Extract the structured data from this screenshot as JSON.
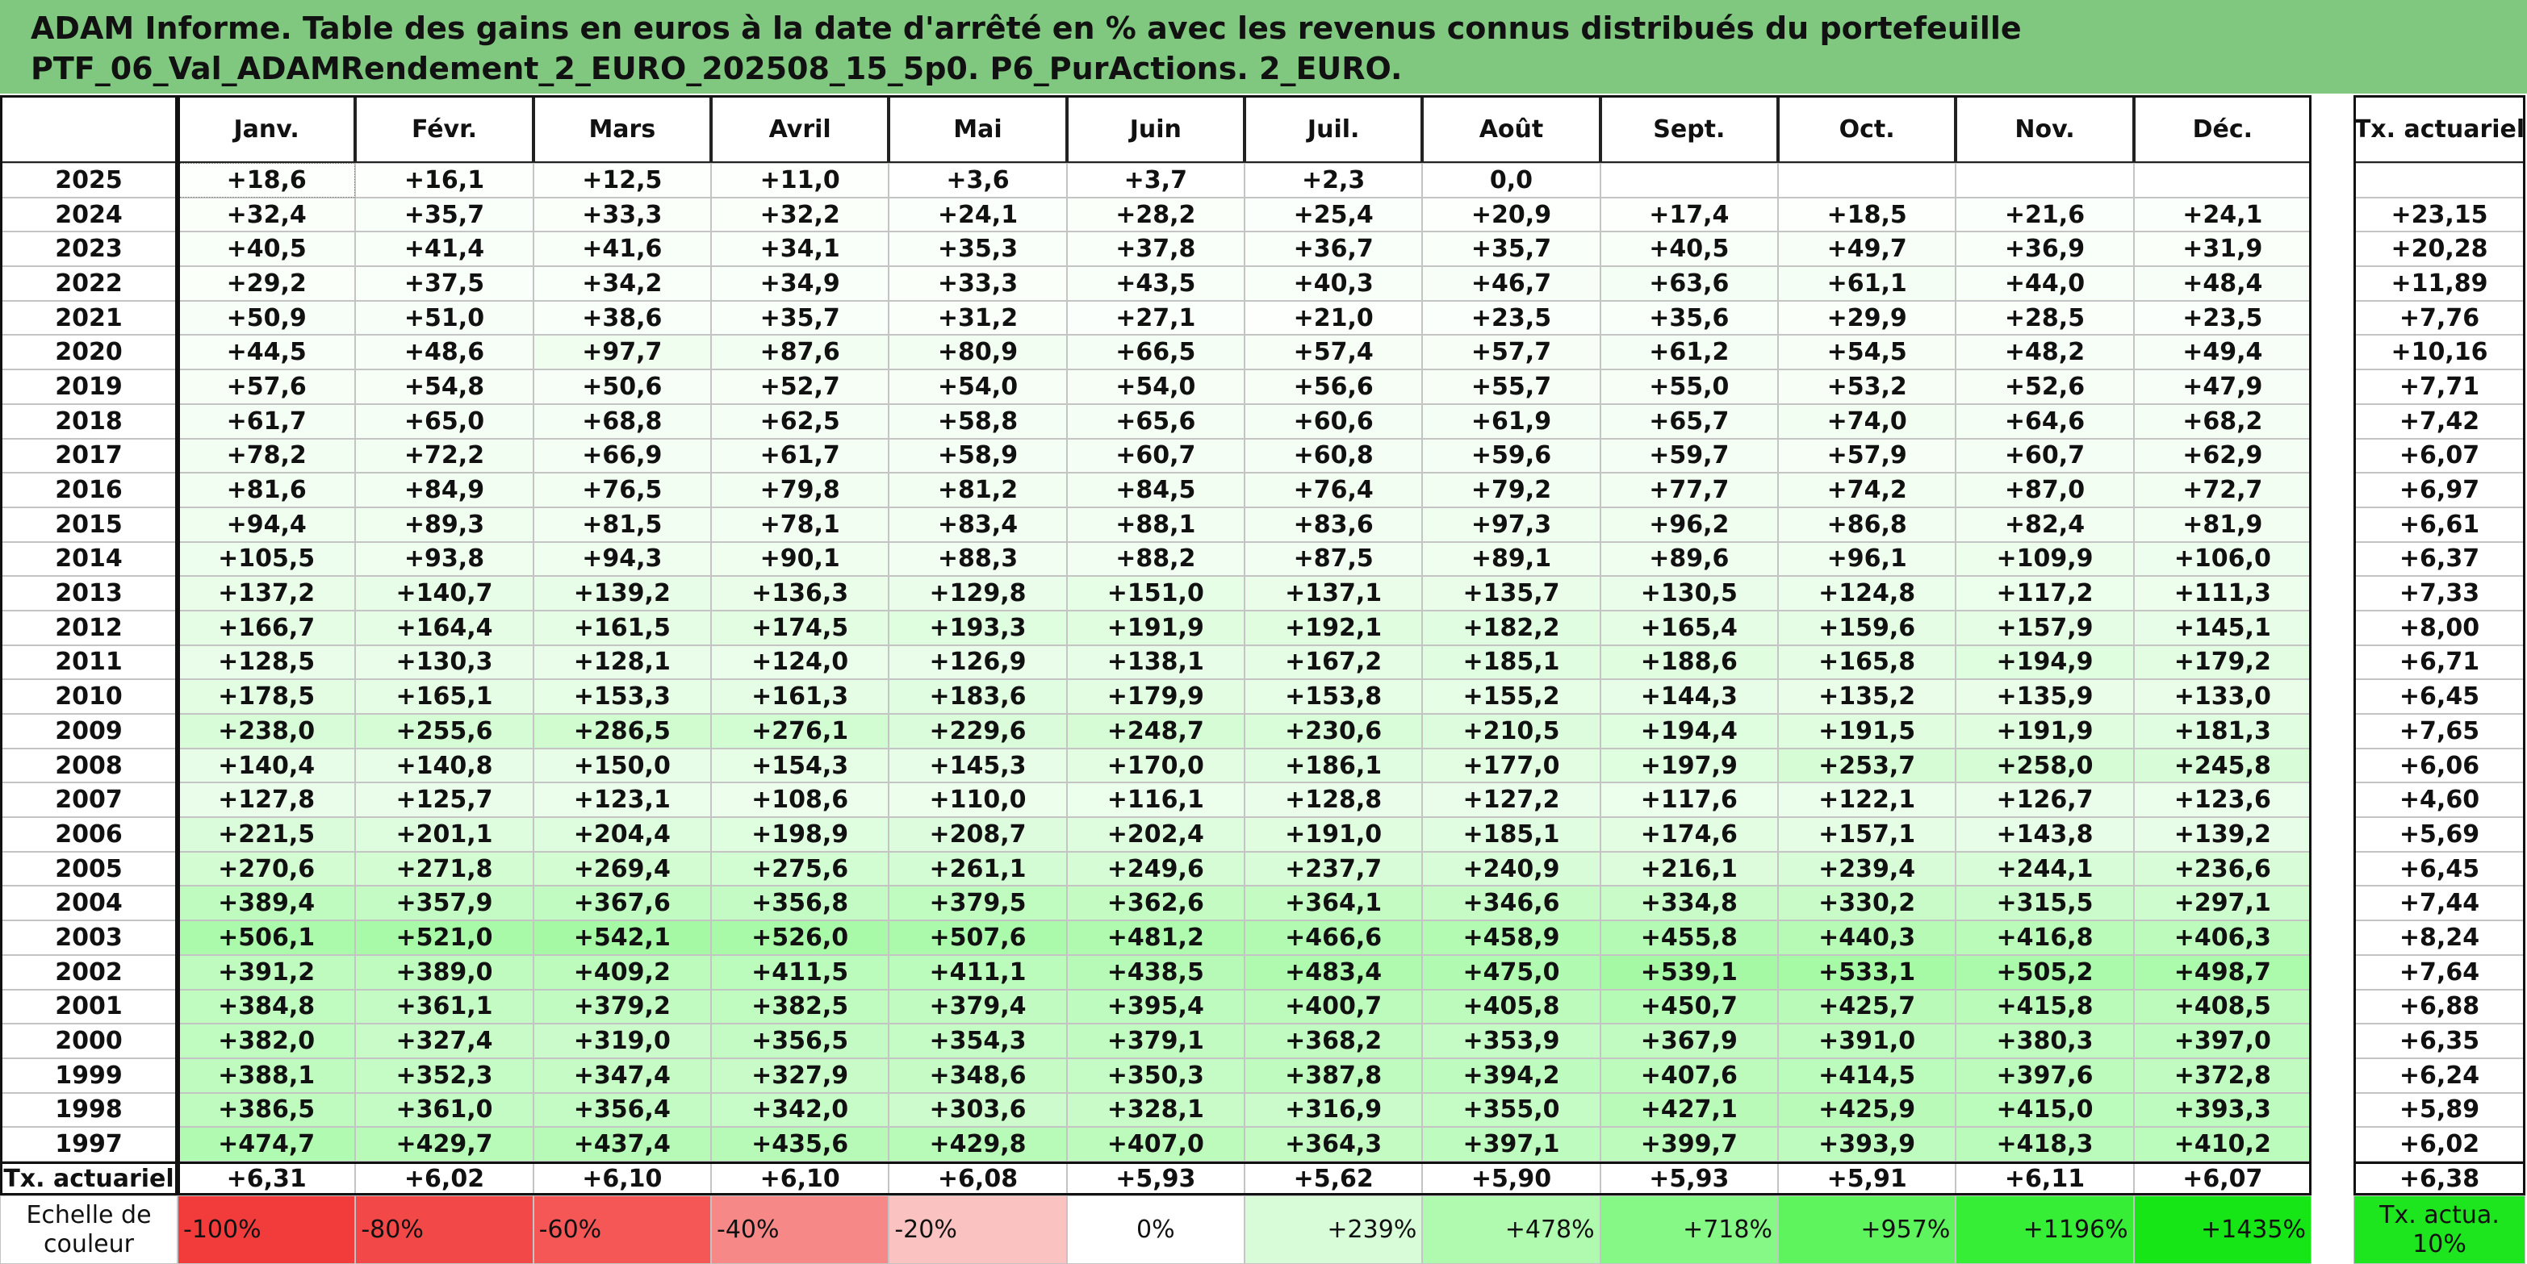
{
  "header": {
    "title_lines": [
      "ADAM Informe. Table des gains en euros à la date d'arrêté en % avec les revenus connus distribués du portefeuille",
      "PTF_06_Val_ADAMRendement_2_EURO_202508_15_5p0. P6_PurActions. 2_EURO."
    ]
  },
  "table": {
    "columns": [
      "Janv.",
      "Févr.",
      "Mars",
      "Avril",
      "Mai",
      "Juin",
      "Juil.",
      "Août",
      "Sept.",
      "Oct.",
      "Nov.",
      "Déc."
    ],
    "tx_column": "Tx. actuariel",
    "rows": [
      {
        "year": "2025",
        "values": [
          "+18,6",
          "+16,1",
          "+12,5",
          "+11,0",
          "+3,6",
          "+3,7",
          "+2,3",
          "0,0",
          null,
          null,
          null,
          null
        ],
        "tx": null
      },
      {
        "year": "2024",
        "values": [
          "+32,4",
          "+35,7",
          "+33,3",
          "+32,2",
          "+24,1",
          "+28,2",
          "+25,4",
          "+20,9",
          "+17,4",
          "+18,5",
          "+21,6",
          "+24,1"
        ],
        "tx": "+23,15"
      },
      {
        "year": "2023",
        "values": [
          "+40,5",
          "+41,4",
          "+41,6",
          "+34,1",
          "+35,3",
          "+37,8",
          "+36,7",
          "+35,7",
          "+40,5",
          "+49,7",
          "+36,9",
          "+31,9"
        ],
        "tx": "+20,28"
      },
      {
        "year": "2022",
        "values": [
          "+29,2",
          "+37,5",
          "+34,2",
          "+34,9",
          "+33,3",
          "+43,5",
          "+40,3",
          "+46,7",
          "+63,6",
          "+61,1",
          "+44,0",
          "+48,4"
        ],
        "tx": "+11,89"
      },
      {
        "year": "2021",
        "values": [
          "+50,9",
          "+51,0",
          "+38,6",
          "+35,7",
          "+31,2",
          "+27,1",
          "+21,0",
          "+23,5",
          "+35,6",
          "+29,9",
          "+28,5",
          "+23,5"
        ],
        "tx": "+7,76"
      },
      {
        "year": "2020",
        "values": [
          "+44,5",
          "+48,6",
          "+97,7",
          "+87,6",
          "+80,9",
          "+66,5",
          "+57,4",
          "+57,7",
          "+61,2",
          "+54,5",
          "+48,2",
          "+49,4"
        ],
        "tx": "+10,16"
      },
      {
        "year": "2019",
        "values": [
          "+57,6",
          "+54,8",
          "+50,6",
          "+52,7",
          "+54,0",
          "+54,0",
          "+56,6",
          "+55,7",
          "+55,0",
          "+53,2",
          "+52,6",
          "+47,9"
        ],
        "tx": "+7,71"
      },
      {
        "year": "2018",
        "values": [
          "+61,7",
          "+65,0",
          "+68,8",
          "+62,5",
          "+58,8",
          "+65,6",
          "+60,6",
          "+61,9",
          "+65,7",
          "+74,0",
          "+64,6",
          "+68,2"
        ],
        "tx": "+7,42"
      },
      {
        "year": "2017",
        "values": [
          "+78,2",
          "+72,2",
          "+66,9",
          "+61,7",
          "+58,9",
          "+60,7",
          "+60,8",
          "+59,6",
          "+59,7",
          "+57,9",
          "+60,7",
          "+62,9"
        ],
        "tx": "+6,07"
      },
      {
        "year": "2016",
        "values": [
          "+81,6",
          "+84,9",
          "+76,5",
          "+79,8",
          "+81,2",
          "+84,5",
          "+76,4",
          "+79,2",
          "+77,7",
          "+74,2",
          "+87,0",
          "+72,7"
        ],
        "tx": "+6,97"
      },
      {
        "year": "2015",
        "values": [
          "+94,4",
          "+89,3",
          "+81,5",
          "+78,1",
          "+83,4",
          "+88,1",
          "+83,6",
          "+97,3",
          "+96,2",
          "+86,8",
          "+82,4",
          "+81,9"
        ],
        "tx": "+6,61"
      },
      {
        "year": "2014",
        "values": [
          "+105,5",
          "+93,8",
          "+94,3",
          "+90,1",
          "+88,3",
          "+88,2",
          "+87,5",
          "+89,1",
          "+89,6",
          "+96,1",
          "+109,9",
          "+106,0"
        ],
        "tx": "+6,37"
      },
      {
        "year": "2013",
        "values": [
          "+137,2",
          "+140,7",
          "+139,2",
          "+136,3",
          "+129,8",
          "+151,0",
          "+137,1",
          "+135,7",
          "+130,5",
          "+124,8",
          "+117,2",
          "+111,3"
        ],
        "tx": "+7,33"
      },
      {
        "year": "2012",
        "values": [
          "+166,7",
          "+164,4",
          "+161,5",
          "+174,5",
          "+193,3",
          "+191,9",
          "+192,1",
          "+182,2",
          "+165,4",
          "+159,6",
          "+157,9",
          "+145,1"
        ],
        "tx": "+8,00"
      },
      {
        "year": "2011",
        "values": [
          "+128,5",
          "+130,3",
          "+128,1",
          "+124,0",
          "+126,9",
          "+138,1",
          "+167,2",
          "+185,1",
          "+188,6",
          "+165,8",
          "+194,9",
          "+179,2"
        ],
        "tx": "+6,71"
      },
      {
        "year": "2010",
        "values": [
          "+178,5",
          "+165,1",
          "+153,3",
          "+161,3",
          "+183,6",
          "+179,9",
          "+153,8",
          "+155,2",
          "+144,3",
          "+135,2",
          "+135,9",
          "+133,0"
        ],
        "tx": "+6,45"
      },
      {
        "year": "2009",
        "values": [
          "+238,0",
          "+255,6",
          "+286,5",
          "+276,1",
          "+229,6",
          "+248,7",
          "+230,6",
          "+210,5",
          "+194,4",
          "+191,5",
          "+191,9",
          "+181,3"
        ],
        "tx": "+7,65"
      },
      {
        "year": "2008",
        "values": [
          "+140,4",
          "+140,8",
          "+150,0",
          "+154,3",
          "+145,3",
          "+170,0",
          "+186,1",
          "+177,0",
          "+197,9",
          "+253,7",
          "+258,0",
          "+245,8"
        ],
        "tx": "+6,06"
      },
      {
        "year": "2007",
        "values": [
          "+127,8",
          "+125,7",
          "+123,1",
          "+108,6",
          "+110,0",
          "+116,1",
          "+128,8",
          "+127,2",
          "+117,6",
          "+122,1",
          "+126,7",
          "+123,6"
        ],
        "tx": "+4,60"
      },
      {
        "year": "2006",
        "values": [
          "+221,5",
          "+201,1",
          "+204,4",
          "+198,9",
          "+208,7",
          "+202,4",
          "+191,0",
          "+185,1",
          "+174,6",
          "+157,1",
          "+143,8",
          "+139,2"
        ],
        "tx": "+5,69"
      },
      {
        "year": "2005",
        "values": [
          "+270,6",
          "+271,8",
          "+269,4",
          "+275,6",
          "+261,1",
          "+249,6",
          "+237,7",
          "+240,9",
          "+216,1",
          "+239,4",
          "+244,1",
          "+236,6"
        ],
        "tx": "+6,45"
      },
      {
        "year": "2004",
        "values": [
          "+389,4",
          "+357,9",
          "+367,6",
          "+356,8",
          "+379,5",
          "+362,6",
          "+364,1",
          "+346,6",
          "+334,8",
          "+330,2",
          "+315,5",
          "+297,1"
        ],
        "tx": "+7,44"
      },
      {
        "year": "2003",
        "values": [
          "+506,1",
          "+521,0",
          "+542,1",
          "+526,0",
          "+507,6",
          "+481,2",
          "+466,6",
          "+458,9",
          "+455,8",
          "+440,3",
          "+416,8",
          "+406,3"
        ],
        "tx": "+8,24"
      },
      {
        "year": "2002",
        "values": [
          "+391,2",
          "+389,0",
          "+409,2",
          "+411,5",
          "+411,1",
          "+438,5",
          "+483,4",
          "+475,0",
          "+539,1",
          "+533,1",
          "+505,2",
          "+498,7"
        ],
        "tx": "+7,64"
      },
      {
        "year": "2001",
        "values": [
          "+384,8",
          "+361,1",
          "+379,2",
          "+382,5",
          "+379,4",
          "+395,4",
          "+400,7",
          "+405,8",
          "+450,7",
          "+425,7",
          "+415,8",
          "+408,5"
        ],
        "tx": "+6,88"
      },
      {
        "year": "2000",
        "values": [
          "+382,0",
          "+327,4",
          "+319,0",
          "+356,5",
          "+354,3",
          "+379,1",
          "+368,2",
          "+353,9",
          "+367,9",
          "+391,0",
          "+380,3",
          "+397,0"
        ],
        "tx": "+6,35"
      },
      {
        "year": "1999",
        "values": [
          "+388,1",
          "+352,3",
          "+347,4",
          "+327,9",
          "+348,6",
          "+350,3",
          "+387,8",
          "+394,2",
          "+407,6",
          "+414,5",
          "+397,6",
          "+372,8"
        ],
        "tx": "+6,24"
      },
      {
        "year": "1998",
        "values": [
          "+386,5",
          "+361,0",
          "+356,4",
          "+342,0",
          "+303,6",
          "+328,1",
          "+316,9",
          "+355,0",
          "+427,1",
          "+425,9",
          "+415,0",
          "+393,3"
        ],
        "tx": "+5,89"
      },
      {
        "year": "1997",
        "values": [
          "+474,7",
          "+429,7",
          "+437,4",
          "+435,6",
          "+429,8",
          "+407,0",
          "+364,3",
          "+397,1",
          "+399,7",
          "+393,9",
          "+418,3",
          "+410,2"
        ],
        "tx": "+6,02"
      }
    ],
    "summary": {
      "label": "Tx. actuariel",
      "values": [
        "+6,31",
        "+6,02",
        "+6,10",
        "+6,10",
        "+6,08",
        "+5,93",
        "+5,62",
        "+5,90",
        "+5,93",
        "+5,91",
        "+6,11",
        "+6,07"
      ],
      "tx": "+6,38"
    },
    "scale": {
      "label": "Echelle de couleur",
      "cells": [
        {
          "text": "-100%",
          "color": "#f23c3c"
        },
        {
          "text": "-80%",
          "color": "#f34848"
        },
        {
          "text": "-60%",
          "color": "#f55656"
        },
        {
          "text": "-40%",
          "color": "#f78888"
        },
        {
          "text": "-20%",
          "color": "#fbc2c2"
        },
        {
          "text": "0%",
          "color": "#ffffff"
        },
        {
          "text": "+239%",
          "color": "#d8fcd8"
        },
        {
          "text": "+478%",
          "color": "#b0fab0"
        },
        {
          "text": "+718%",
          "color": "#86f886"
        },
        {
          "text": "+957%",
          "color": "#5ef45e"
        },
        {
          "text": "+1196%",
          "color": "#36ee36"
        },
        {
          "text": "+1435%",
          "color": "#16e616"
        }
      ],
      "tx": {
        "text": "Tx. actua. 10%",
        "color": "#1ee61e"
      }
    }
  }
}
